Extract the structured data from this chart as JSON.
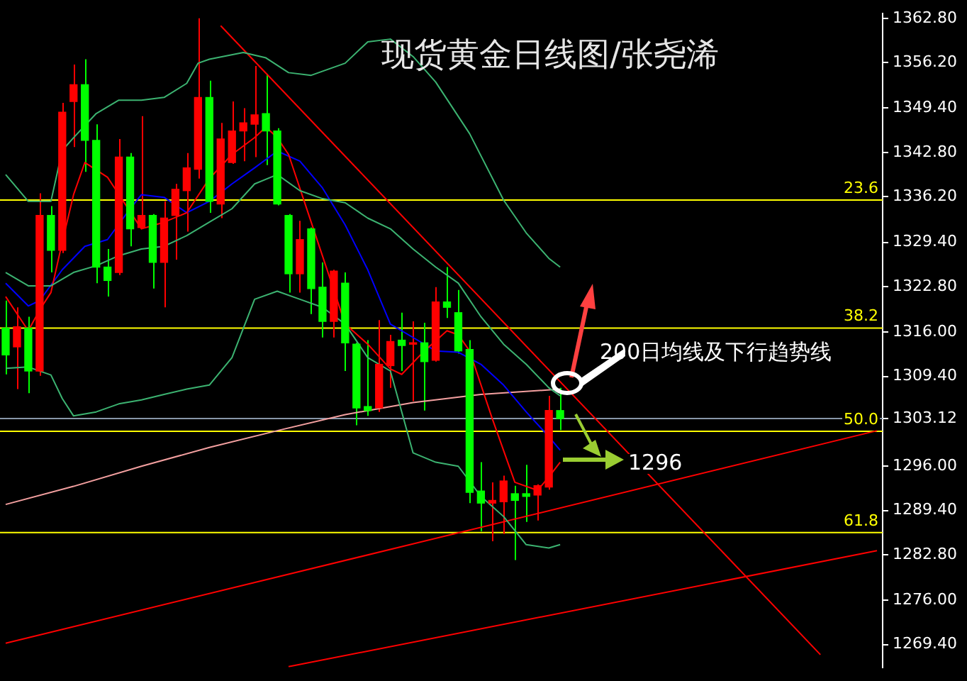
{
  "chart_data": {
    "type": "candlestick",
    "title": "现货黄金日线图/张尧浠",
    "categories": [
      null,
      null,
      null,
      null,
      null,
      null,
      null,
      null,
      null,
      null,
      null,
      null,
      null,
      null,
      null,
      null,
      null,
      null,
      null,
      null,
      null,
      null,
      null,
      null,
      null,
      null,
      null,
      null,
      null,
      null,
      null,
      null,
      null,
      null,
      null,
      null,
      null,
      null,
      null,
      null,
      null,
      null,
      null,
      null,
      null,
      null,
      null,
      null,
      null,
      null,
      null,
      null,
      null,
      null,
      null,
      null,
      null,
      null,
      null,
      null,
      null,
      null,
      null,
      null,
      null,
      null,
      null,
      null,
      null,
      null,
      null,
      null,
      null,
      null,
      null,
      null,
      null,
      null
    ],
    "ohlc": [
      [
        1316.6,
        1320.7,
        1309.7,
        1312.6
      ],
      [
        1313.8,
        1319.7,
        1307.5,
        1316.8
      ],
      [
        1316.6,
        1318.3,
        1306.9,
        1310.2
      ],
      [
        1310.2,
        1336.7,
        1309.5,
        1333.4
      ],
      [
        1333.4,
        1334.8,
        1324.9,
        1328.2
      ],
      [
        1328.2,
        1350.2,
        1327.8,
        1348.8
      ],
      [
        1350.4,
        1355.9,
        1343.6,
        1352.9
      ],
      [
        1352.9,
        1356.7,
        1339.9,
        1344.6
      ],
      [
        1344.6,
        1347.0,
        1323.3,
        1325.7
      ],
      [
        1325.7,
        1328.4,
        1321.3,
        1323.7
      ],
      [
        1324.9,
        1344.8,
        1324.5,
        1342.1
      ],
      [
        1342.1,
        1342.7,
        1328.8,
        1331.4
      ],
      [
        1331.6,
        1348.2,
        1331.4,
        1333.4
      ],
      [
        1333.4,
        1333.6,
        1322.5,
        1326.4
      ],
      [
        1326.4,
        1335.5,
        1319.7,
        1333.0
      ],
      [
        1333.4,
        1338.1,
        1326.8,
        1337.3
      ],
      [
        1337.1,
        1342.7,
        1331.0,
        1340.5
      ],
      [
        1340.3,
        1362.8,
        1338.9,
        1351.0
      ],
      [
        1351.0,
        1353.5,
        1333.8,
        1335.5
      ],
      [
        1335.1,
        1347.2,
        1333.0,
        1344.8
      ],
      [
        1341.3,
        1350.4,
        1341.1,
        1346.0
      ],
      [
        1346.0,
        1349.4,
        1341.5,
        1347.2
      ],
      [
        1347.0,
        1355.7,
        1342.1,
        1348.4
      ],
      [
        1348.6,
        1354.5,
        1340.9,
        1346.0
      ],
      [
        1346.0,
        1346.4,
        1334.9,
        1335.1
      ],
      [
        1333.4,
        1333.6,
        1321.9,
        1324.7
      ],
      [
        1324.7,
        1332.6,
        1321.9,
        1329.8
      ],
      [
        1331.4,
        1331.6,
        1318.7,
        1322.5
      ],
      [
        1322.7,
        1326.4,
        1315.2,
        1317.6
      ],
      [
        1317.6,
        1325.3,
        1315.2,
        1325.1
      ],
      [
        1323.3,
        1324.9,
        1310.2,
        1314.4
      ],
      [
        1314.2,
        1314.4,
        1302.1,
        1304.7
      ],
      [
        1304.9,
        1314.8,
        1303.5,
        1304.3
      ],
      [
        1304.7,
        1317.8,
        1304.1,
        1311.2
      ],
      [
        1311.0,
        1315.6,
        1307.7,
        1314.6
      ],
      [
        1314.8,
        1318.9,
        1310.2,
        1314.0
      ],
      [
        1314.2,
        1317.6,
        1305.7,
        1314.4
      ],
      [
        1314.4,
        1317.4,
        1304.3,
        1311.6
      ],
      [
        1311.8,
        1322.7,
        1311.6,
        1320.5
      ],
      [
        1320.5,
        1325.7,
        1318.1,
        1319.7
      ],
      [
        1318.9,
        1322.3,
        1312.8,
        1313.2
      ],
      [
        1313.4,
        1314.8,
        1290.5,
        1292.1
      ],
      [
        1292.3,
        1296.6,
        1286.3,
        1290.5
      ],
      [
        1290.5,
        1293.6,
        1284.8,
        1290.9
      ],
      [
        1290.7,
        1294.6,
        1285.9,
        1293.8
      ],
      [
        1291.9,
        1293.1,
        1282.0,
        1290.9
      ],
      [
        1291.9,
        1296.2,
        1287.7,
        1291.5
      ],
      [
        1291.7,
        1293.3,
        1287.9,
        1293.1
      ],
      [
        1292.9,
        1306.5,
        1292.5,
        1304.3
      ],
      [
        1304.3,
        1307.7,
        1301.4,
        1303.1
      ],
      null,
      null,
      null,
      null,
      null,
      null,
      null,
      null,
      null,
      null,
      null,
      null,
      null,
      null,
      null,
      null,
      null,
      null,
      null,
      null,
      null,
      null,
      null,
      null,
      null,
      null,
      null,
      null
    ],
    "colors": [
      "#00ff00",
      "#ff0000",
      "#00ff00",
      "#ff0000",
      "#00ff00",
      "#ff0000",
      "#ff0000",
      "#00ff00",
      "#00ff00",
      "#00ff00",
      "#ff0000",
      "#00ff00",
      "#ff0000",
      "#00ff00",
      "#ff0000",
      "#ff0000",
      "#ff0000",
      "#ff0000",
      "#00ff00",
      "#ff0000",
      "#ff0000",
      "#ff0000",
      "#ff0000",
      "#00ff00",
      "#00ff00",
      "#00ff00",
      "#ff0000",
      "#00ff00",
      "#00ff00",
      "#ff0000",
      "#00ff00",
      "#00ff00",
      "#00ff00",
      "#ff0000",
      "#ff0000",
      "#00ff00",
      "#ff0000",
      "#00ff00",
      "#ff0000",
      "#00ff00",
      "#00ff00",
      "#00ff00",
      "#00ff00",
      "#ff0000",
      "#ff0000",
      "#00ff00",
      "#00ff00",
      "#ff0000",
      "#ff0000",
      "#00ff00",
      null,
      null,
      null,
      null,
      null,
      null,
      null,
      null,
      null,
      null,
      null,
      null,
      null,
      null,
      null,
      null,
      null,
      null,
      null,
      null,
      null,
      null,
      null,
      null,
      null,
      null,
      null,
      null
    ],
    "series": [
      {
        "type": "line",
        "color": "#3cb371",
        "values": [
          1339.5,
          null,
          1335.5,
          null,
          1335.5,
          1343.1,
          1345.0,
          null,
          1348.6,
          null,
          1350.6,
          null,
          1350.6,
          null,
          1351.0,
          null,
          1353.1,
          1356.1,
          1356.7,
          null,
          null,
          1357.7,
          null,
          1356.9,
          null,
          1354.7,
          null,
          1354.3,
          null,
          null,
          1356.1,
          null,
          1359.3,
          null,
          1359.7,
          null,
          1357.1,
          null,
          1353.3,
          null,
          null,
          1345.6,
          null,
          null,
          1335.7,
          null,
          1330.8,
          null,
          1327.0,
          1325.7,
          null,
          null,
          null,
          null,
          null,
          null,
          null,
          null,
          null,
          null,
          null,
          null,
          null,
          null,
          null,
          null,
          null,
          null,
          null,
          null,
          null,
          null,
          null,
          null,
          null,
          null,
          null,
          null
        ]
      },
      {
        "type": "line",
        "color": "#3cb371",
        "values": [
          1324.9,
          null,
          1322.9,
          null,
          1322.9,
          null,
          1324.9,
          null,
          1325.9,
          null,
          1327.4,
          null,
          1328.4,
          null,
          1328.8,
          null,
          1330.4,
          null,
          1332.4,
          null,
          1334.4,
          null,
          1338.1,
          null,
          1339.5,
          null,
          1337.1,
          null,
          1335.9,
          null,
          1335.3,
          null,
          1333.0,
          null,
          1331.4,
          null,
          1328.4,
          null,
          1325.7,
          null,
          1323.3,
          null,
          1318.3,
          null,
          1314.2,
          null,
          1311.2,
          null,
          1307.7,
          1306.5,
          null,
          null,
          null,
          null,
          null,
          null,
          null,
          null,
          null,
          null,
          null,
          null,
          null,
          null,
          null,
          null,
          null,
          null,
          null,
          null,
          null,
          null,
          null,
          null,
          null,
          null,
          null,
          null
        ]
      },
      {
        "type": "line",
        "color": "#3cb371",
        "values": [
          1310.6,
          null,
          1310.8,
          null,
          1309.6,
          1306.1,
          1303.5,
          null,
          1304.1,
          null,
          1305.3,
          null,
          1305.9,
          null,
          1306.7,
          null,
          1307.5,
          null,
          1308.1,
          null,
          1312.2,
          null,
          1320.9,
          null,
          1322.1,
          null,
          1320.9,
          null,
          1319.7,
          null,
          1317.2,
          null,
          1312.2,
          null,
          1310.2,
          null,
          1298.0,
          null,
          1296.6,
          null,
          1296.0,
          null,
          1291.5,
          null,
          1288.5,
          null,
          1284.3,
          null,
          1283.8,
          1284.3,
          null,
          null,
          null,
          null,
          null,
          null,
          null,
          null,
          null,
          null,
          null,
          null,
          null,
          null,
          null,
          null,
          null,
          null,
          null,
          null,
          null,
          null,
          null,
          null,
          null,
          null,
          null,
          null
        ]
      },
      {
        "type": "line",
        "color": "#ff0000",
        "values": [
          1321.3,
          null,
          1316.2,
          1319.3,
          1321.9,
          1329.4,
          1336.5,
          1341.3,
          null,
          1339.1,
          null,
          null,
          1331.4,
          null,
          1332.4,
          null,
          1333.8,
          null,
          1338.9,
          null,
          1342.5,
          null,
          1345.0,
          1346.6,
          1345.0,
          1342.5,
          null,
          1332.4,
          null,
          1322.3,
          1317.2,
          null,
          1314.2,
          null,
          1310.5,
          1309.7,
          null,
          1313.2,
          null,
          1316.2,
          1315.6,
          1313.2,
          null,
          1303.1,
          null,
          1293.6,
          null,
          1292.4,
          1294.4,
          1296.6,
          null,
          null,
          null,
          null,
          null,
          null,
          null,
          null,
          null,
          null,
          null,
          null,
          null,
          null,
          null,
          null,
          null,
          null,
          null,
          null,
          null,
          null,
          null,
          null,
          null,
          null,
          null,
          null
        ]
      },
      {
        "type": "line",
        "color": "#0000ff",
        "values": [
          1323.3,
          null,
          1319.9,
          1320.7,
          null,
          1325.3,
          null,
          1328.8,
          null,
          1329.8,
          null,
          1334.4,
          1336.5,
          null,
          1336.1,
          null,
          1333.8,
          null,
          1335.5,
          null,
          1338.1,
          null,
          1340.5,
          null,
          1343.0,
          null,
          1341.5,
          null,
          1337.5,
          null,
          1332.0,
          null,
          1325.3,
          null,
          1317.2,
          null,
          1315.2,
          null,
          1313.2,
          null,
          1313.0,
          null,
          1311.2,
          null,
          1308.1,
          null,
          1304.1,
          null,
          1300.4,
          1298.4,
          null,
          null,
          null,
          null,
          null,
          null,
          null,
          null,
          null,
          null,
          null,
          null,
          null,
          null,
          null,
          null,
          null,
          null,
          null,
          null,
          null,
          null,
          null,
          null,
          null,
          null,
          null,
          null
        ]
      },
      {
        "type": "line",
        "color": "#f4a0a0",
        "values": [
          1290.3,
          null,
          null,
          null,
          null,
          null,
          1293.0,
          null,
          null,
          null,
          null,
          null,
          1296.0,
          null,
          null,
          null,
          null,
          null,
          1298.8,
          null,
          null,
          null,
          null,
          null,
          1301.3,
          null,
          null,
          null,
          null,
          null,
          1303.7,
          null,
          null,
          null,
          null,
          null,
          1305.5,
          null,
          null,
          null,
          null,
          null,
          1306.7,
          null,
          null,
          null,
          null,
          null,
          null,
          1307.5,
          null,
          null,
          null,
          null,
          null,
          null,
          null,
          null,
          null,
          null,
          null,
          null,
          null,
          null,
          null,
          null,
          null,
          null,
          null,
          null,
          null,
          null,
          null,
          null,
          null,
          null,
          null,
          null
        ]
      },
      {
        "type": "line",
        "color": "#ff0000",
        "values": [
          null,
          null,
          null,
          null,
          null,
          null,
          null,
          null,
          null,
          null,
          null,
          null,
          null,
          null,
          null,
          null,
          null,
          null,
          null,
          1361.7,
          null,
          null,
          null,
          null,
          null,
          null,
          null,
          null,
          null,
          null,
          null,
          null,
          null,
          null,
          null,
          null,
          null,
          null,
          null,
          null,
          null,
          null,
          null,
          null,
          null,
          null,
          null,
          null,
          null,
          null,
          null,
          null,
          null,
          null,
          null,
          null,
          null,
          null,
          null,
          null,
          null,
          null,
          null,
          null,
          null,
          null,
          null,
          null,
          null,
          null,
          null,
          null,
          1267.9,
          null,
          null,
          null,
          null,
          null
        ]
      },
      {
        "type": "line",
        "color": "#ff0000",
        "values": [
          1269.6,
          null,
          null,
          null,
          null,
          null,
          null,
          null,
          null,
          null,
          null,
          null,
          null,
          null,
          null,
          null,
          null,
          null,
          null,
          null,
          null,
          null,
          null,
          null,
          null,
          null,
          null,
          null,
          null,
          null,
          null,
          null,
          null,
          null,
          null,
          null,
          null,
          null,
          null,
          null,
          null,
          null,
          null,
          null,
          null,
          null,
          null,
          null,
          null,
          null,
          null,
          null,
          null,
          null,
          null,
          null,
          null,
          null,
          null,
          null,
          null,
          null,
          null,
          null,
          null,
          null,
          null,
          null,
          null,
          null,
          null,
          null,
          null,
          null,
          null,
          null,
          null,
          1301.3
        ]
      },
      {
        "type": "line",
        "color": "#ff0000",
        "values": [
          null,
          null,
          null,
          null,
          null,
          null,
          null,
          null,
          null,
          null,
          null,
          null,
          null,
          null,
          null,
          null,
          null,
          null,
          null,
          null,
          null,
          null,
          null,
          null,
          null,
          1266.1,
          null,
          null,
          null,
          null,
          null,
          null,
          null,
          null,
          null,
          null,
          null,
          null,
          null,
          null,
          null,
          null,
          null,
          null,
          null,
          null,
          null,
          null,
          null,
          null,
          null,
          null,
          null,
          null,
          null,
          null,
          null,
          null,
          null,
          null,
          null,
          null,
          null,
          null,
          null,
          null,
          null,
          null,
          null,
          null,
          null,
          null,
          null,
          null,
          null,
          null,
          null,
          1283.4
        ]
      }
    ],
    "ylim": [
      1266,
      1363.5
    ],
    "yticks": [
      {
        "value": 1362.8,
        "label": "1362.80"
      },
      {
        "value": 1356.2,
        "label": "1356.20"
      },
      {
        "value": 1349.4,
        "label": "1349.40"
      },
      {
        "value": 1342.8,
        "label": "1342.80"
      },
      {
        "value": 1336.2,
        "label": "1336.20"
      },
      {
        "value": 1329.4,
        "label": "1329.40"
      },
      {
        "value": 1322.8,
        "label": "1322.80"
      },
      {
        "value": 1316,
        "label": "1316.00"
      },
      {
        "value": 1309.4,
        "label": "1309.40"
      },
      1303.12,
      {
        "value": 1296,
        "label": "1296.00"
      },
      {
        "value": 1289.4,
        "label": "1289.40"
      },
      {
        "value": 1282.8,
        "label": "1282.80"
      },
      {
        "value": 1276,
        "label": "1276.00"
      },
      {
        "value": 1269.4,
        "label": "1269.40"
      }
    ],
    "ref_lines": [
      {
        "axis": "y",
        "value": 1335.7,
        "color": "#ffff00"
      },
      {
        "axis": "y",
        "value": 1316.6,
        "color": "#ffff00"
      },
      {
        "axis": "y",
        "value": 1301.2,
        "color": "#ffff00"
      },
      {
        "axis": "y",
        "value": 1286.1,
        "color": "#ffff00"
      },
      {
        "axis": "y",
        "value": 1303.12,
        "color": "#8796a8"
      }
    ],
    "annotations": [
      "200日均线及下行趋势线",
      "1296",
      {
        "text": "23.6",
        "y": 1335.7
      },
      {
        "text": "38.2",
        "y": 1316.6
      },
      {
        "text": "50.0",
        "y": 1301.2
      },
      {
        "text": "61.8",
        "y": 1286.1
      }
    ],
    "grid": false,
    "legend": false,
    "marker": "none",
    "line_style": "solid",
    "tick_labels": "y"
  }
}
